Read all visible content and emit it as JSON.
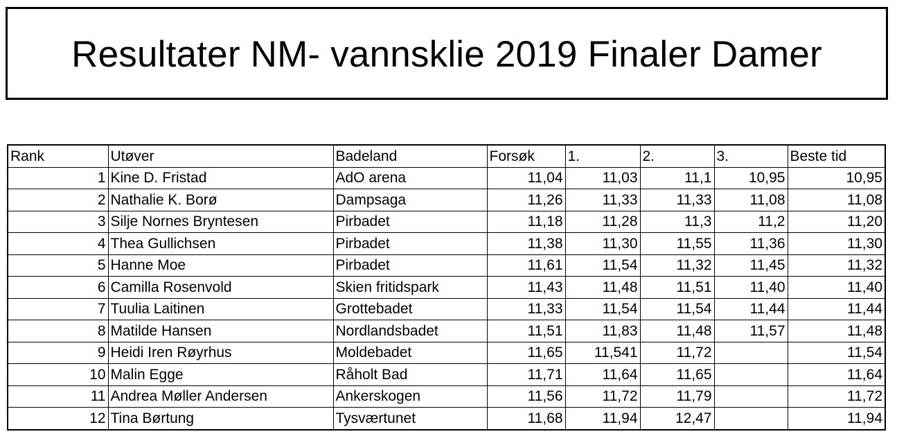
{
  "title": "Resultater NM- vannsklie 2019 Finaler Damer",
  "table": {
    "headers": [
      "Rank",
      "Utøver",
      "Badeland",
      "Forsøk",
      "1.",
      "2.",
      "3.",
      "Beste tid"
    ],
    "rows": [
      [
        "1",
        "Kine D. Fristad",
        "AdO arena",
        "11,04",
        "11,03",
        "11,1",
        "10,95",
        "10,95"
      ],
      [
        "2",
        "Nathalie K. Borø",
        "Dampsaga",
        "11,26",
        "11,33",
        "11,33",
        "11,08",
        "11,08"
      ],
      [
        "3",
        "Silje Nornes Bryntesen",
        "Pirbadet",
        "11,18",
        "11,28",
        "11,3",
        "11,2",
        "11,20"
      ],
      [
        "4",
        "Thea Gullichsen",
        "Pirbadet",
        "11,38",
        "11,30",
        "11,55",
        "11,36",
        "11,30"
      ],
      [
        "5",
        "Hanne Moe",
        "Pirbadet",
        "11,61",
        "11,54",
        "11,32",
        "11,45",
        "11,32"
      ],
      [
        "6",
        "Camilla Rosenvold",
        "Skien fritidspark",
        "11,43",
        "11,48",
        "11,51",
        "11,40",
        "11,40"
      ],
      [
        "7",
        "Tuulia Laitinen",
        "Grottebadet",
        "11,33",
        "11,54",
        "11,54",
        "11,44",
        "11,44"
      ],
      [
        "8",
        "Matilde Hansen",
        "Nordlandsbadet",
        "11,51",
        "11,83",
        "11,48",
        "11,57",
        "11,48"
      ],
      [
        "9",
        "Heidi Iren Røyrhus",
        "Moldebadet",
        "11,65",
        "11,541",
        "11,72",
        "",
        "11,54"
      ],
      [
        "10",
        "Malin Egge",
        "Råholt Bad",
        "11,71",
        "11,64",
        "11,65",
        "",
        "11,64"
      ],
      [
        "11",
        "Andrea Møller Andersen",
        "Ankerskogen",
        "11,56",
        "11,72",
        "11,79",
        "",
        "11,72"
      ],
      [
        "12",
        "Tina Børtung",
        "Tysværtunet",
        "11,68",
        "11,94",
        "12,47",
        "",
        "11,94"
      ]
    ]
  }
}
